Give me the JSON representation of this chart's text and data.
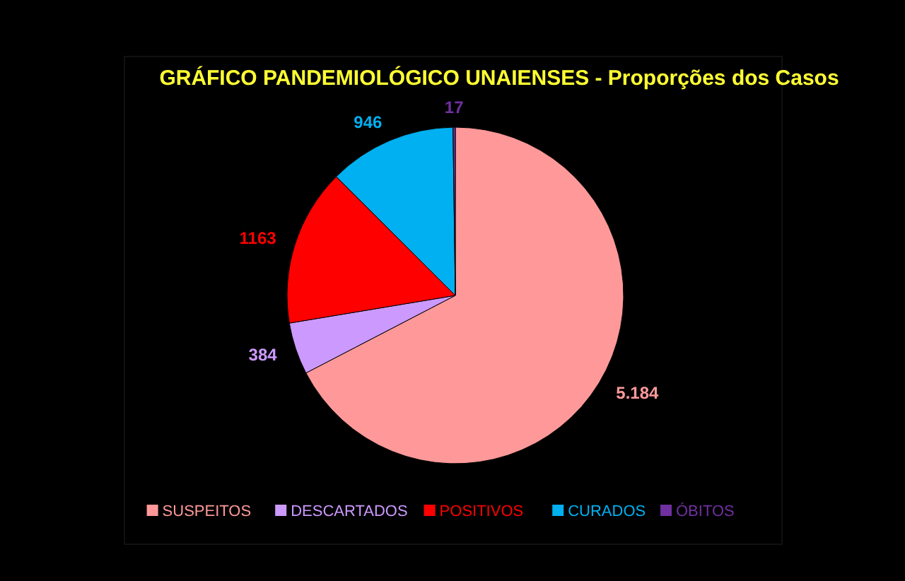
{
  "chart_data": {
    "type": "pie",
    "title": "GRÁFICO PANDEMIOLÓGICO UNAIENSES - Proporções dos Casos",
    "categories": [
      "SUSPEITOS",
      "DESCARTADOS",
      "POSITIVOS",
      "CURADOS",
      "ÓBITOS"
    ],
    "values": [
      5184,
      384,
      1163,
      946,
      17
    ],
    "value_labels": [
      "5.184",
      "384",
      "1163",
      "946",
      "17"
    ],
    "colors": [
      "#ff9999",
      "#cc99ff",
      "#ff0000",
      "#00b0f0",
      "#7030a0"
    ],
    "legend": "bottom"
  }
}
